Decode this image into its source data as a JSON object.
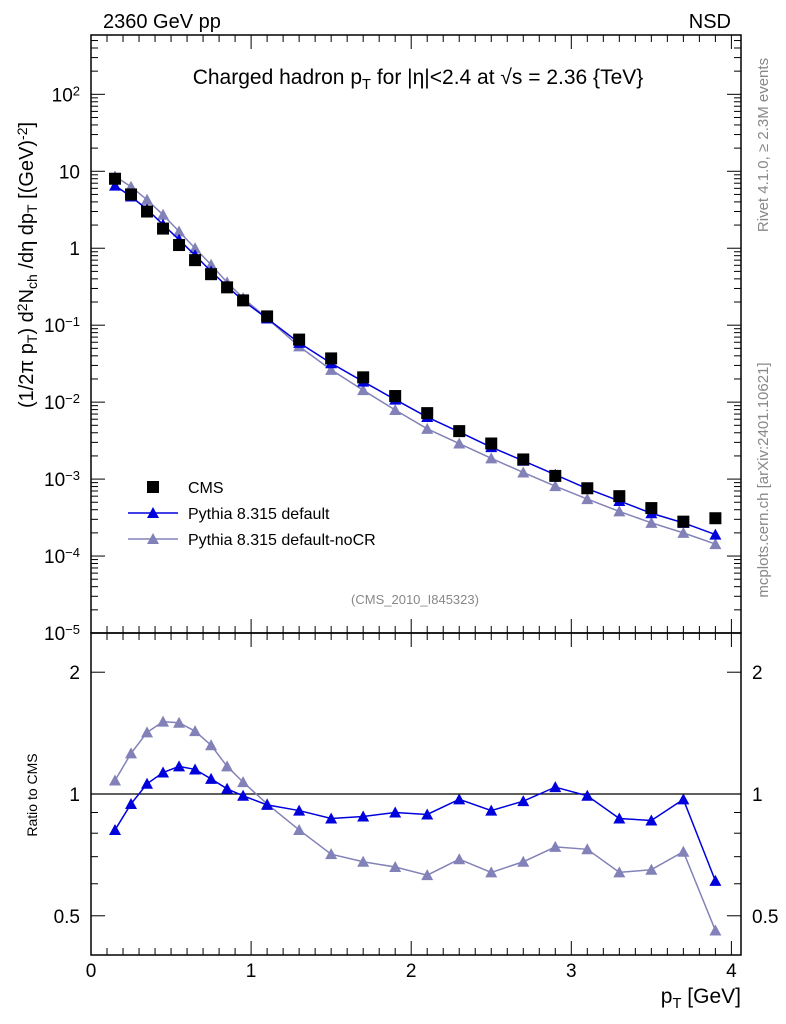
{
  "header": {
    "left": "2360 GeV pp",
    "right": "NSD"
  },
  "side_text": {
    "top": "Rivet 4.1.0, ≥ 2.3M events",
    "bottom": "mcplots.cern.ch [arXiv:2401.10621]"
  },
  "analysis_id": "(CMS_2010_I845323)",
  "colors": {
    "cms": "#000000",
    "default": "#0000dd",
    "nocr": "#8282b8"
  },
  "chart_data": [
    {
      "type": "scatter",
      "title_parts": [
        {
          "t": "Charged hadron p"
        },
        {
          "t": "T",
          "sub": true
        },
        {
          "t": " for |η|<2.4 at √s = 2.36 {TeV}"
        }
      ],
      "ylabel_parts": [
        {
          "t": "(1/2π p"
        },
        {
          "t": "T",
          "sub": true
        },
        {
          "t": ") d"
        },
        {
          "t": "2",
          "sup": true
        },
        {
          "t": "N"
        },
        {
          "t": "ch",
          "sub": true
        },
        {
          "t": " /dη  dp"
        },
        {
          "t": "T",
          "sub": true
        },
        {
          "t": " [(GeV)"
        },
        {
          "t": "-2",
          "sup": true
        },
        {
          "t": "]"
        }
      ],
      "yscale": "log",
      "ylim": [
        1e-05,
        590
      ],
      "xlim": [
        0,
        4.06
      ],
      "ytick_labels": [
        {
          "v": 100,
          "b": "10",
          "e": "2"
        },
        {
          "v": 10,
          "b": "10",
          "e": ""
        },
        {
          "v": 1,
          "b": "1",
          "e": ""
        },
        {
          "v": 0.1,
          "b": "10",
          "e": "−1"
        },
        {
          "v": 0.01,
          "b": "10",
          "e": "−2"
        },
        {
          "v": 0.001,
          "b": "10",
          "e": "−3"
        },
        {
          "v": 0.0001,
          "b": "10",
          "e": "−4"
        },
        {
          "v": 1e-05,
          "b": "10",
          "e": "−5"
        }
      ],
      "x": [
        0.15,
        0.25,
        0.35,
        0.45,
        0.55,
        0.65,
        0.75,
        0.85,
        0.95,
        1.1,
        1.3,
        1.5,
        1.7,
        1.9,
        2.1,
        2.3,
        2.5,
        2.7,
        2.9,
        3.1,
        3.3,
        3.5,
        3.7,
        3.9
      ],
      "series": [
        {
          "name": "CMS",
          "marker": "square",
          "values": [
            8.0,
            5.0,
            3.0,
            1.8,
            1.1,
            0.7,
            0.46,
            0.31,
            0.21,
            0.13,
            0.065,
            0.037,
            0.021,
            0.012,
            0.0072,
            0.0042,
            0.0029,
            0.0018,
            0.0011,
            0.00076,
            0.0006,
            0.00042,
            0.00028,
            0.00031
          ]
        },
        {
          "name": "Pythia 8.315 default",
          "marker": "triangle",
          "values": [
            6.5,
            4.7,
            3.2,
            2.03,
            1.29,
            0.81,
            0.5,
            0.32,
            0.208,
            0.122,
            0.059,
            0.032,
            0.0185,
            0.0108,
            0.0064,
            0.0041,
            0.0026,
            0.00173,
            0.00114,
            0.00075,
            0.00052,
            0.00036,
            0.00027,
            0.00019
          ]
        },
        {
          "name": "Pythia 8.315 default-noCR",
          "marker": "triangle",
          "values": [
            8.6,
            6.3,
            4.26,
            2.72,
            1.65,
            1.0,
            0.61,
            0.36,
            0.225,
            0.123,
            0.053,
            0.0263,
            0.0143,
            0.0079,
            0.0045,
            0.0029,
            0.00186,
            0.00122,
            0.00081,
            0.00055,
            0.00038,
            0.00027,
            0.0002,
            0.000143
          ]
        }
      ],
      "legend": "top-left-lower"
    },
    {
      "type": "line",
      "ylabel": "Ratio to CMS",
      "yscale": "log",
      "ylim": [
        0.4,
        2.5
      ],
      "xlim": [
        0,
        4.06
      ],
      "ytick_labels": [
        {
          "v": 2,
          "l": "2"
        },
        {
          "v": 1,
          "l": "1"
        },
        {
          "v": 0.5,
          "l": "0.5"
        }
      ],
      "xtick_labels": [
        "0",
        "1",
        "2",
        "3",
        "4"
      ],
      "xlabel_parts": [
        {
          "t": "p"
        },
        {
          "t": "T",
          "sub": true
        },
        {
          "t": " [GeV]"
        }
      ],
      "x": [
        0.15,
        0.25,
        0.35,
        0.45,
        0.55,
        0.65,
        0.75,
        0.85,
        0.95,
        1.1,
        1.3,
        1.5,
        1.7,
        1.9,
        2.1,
        2.3,
        2.5,
        2.7,
        2.9,
        3.1,
        3.3,
        3.5,
        3.7,
        3.9
      ],
      "series": [
        {
          "name": "Pythia 8.315 default",
          "values": [
            0.815,
            0.945,
            1.06,
            1.13,
            1.17,
            1.15,
            1.09,
            1.03,
            0.99,
            0.94,
            0.91,
            0.87,
            0.88,
            0.9,
            0.89,
            0.97,
            0.91,
            0.96,
            1.04,
            0.99,
            0.87,
            0.86,
            0.97,
            0.61
          ]
        },
        {
          "name": "Pythia 8.315 default-noCR",
          "values": [
            1.08,
            1.26,
            1.42,
            1.51,
            1.5,
            1.43,
            1.32,
            1.17,
            1.07,
            0.945,
            0.815,
            0.71,
            0.68,
            0.66,
            0.63,
            0.69,
            0.64,
            0.68,
            0.74,
            0.73,
            0.64,
            0.65,
            0.72,
            0.46
          ]
        }
      ]
    }
  ]
}
